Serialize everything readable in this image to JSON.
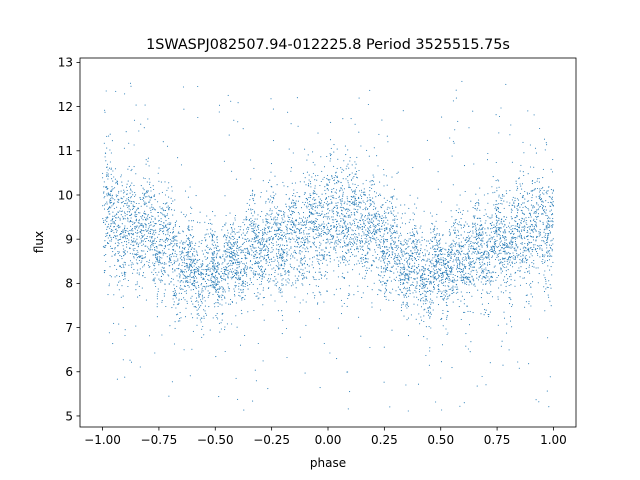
{
  "chart_data": {
    "type": "scatter",
    "title": "1SWASPJ082507.94-012225.8 Period 3525515.75s",
    "xlabel": "phase",
    "ylabel": "flux",
    "xlim": [
      -1.1,
      1.1
    ],
    "ylim": [
      4.75,
      13.1
    ],
    "x_ticks": [
      -1.0,
      -0.75,
      -0.5,
      -0.25,
      0.0,
      0.25,
      0.5,
      0.75,
      1.0
    ],
    "x_tick_labels": [
      "−1.00",
      "−0.75",
      "−0.50",
      "−0.25",
      "0.00",
      "0.25",
      "0.50",
      "0.75",
      "1.00"
    ],
    "y_ticks": [
      5,
      6,
      7,
      8,
      9,
      10,
      11,
      12,
      13
    ],
    "y_tick_labels": [
      "5",
      "6",
      "7",
      "8",
      "9",
      "10",
      "11",
      "12",
      "13"
    ],
    "grid": false,
    "legend": "none",
    "marker_color": "#1f77b4",
    "series": [
      {
        "phase_range": [
          -1.0,
          1.0
        ],
        "profile": {
          "phase": [
            0.0,
            0.05,
            0.1,
            0.15,
            0.2,
            0.25,
            0.3,
            0.35,
            0.4,
            0.45,
            0.5,
            0.55,
            0.6,
            0.65,
            0.7,
            0.75,
            0.8,
            0.85,
            0.9,
            0.95,
            1.0
          ],
          "median_flux": [
            9.4,
            9.5,
            9.3,
            9.3,
            9.2,
            9.0,
            8.7,
            8.5,
            8.3,
            8.2,
            8.3,
            8.4,
            8.5,
            8.7,
            8.8,
            8.9,
            9.0,
            9.1,
            9.2,
            9.3,
            9.4
          ],
          "spread": [
            0.7,
            0.7,
            0.65,
            0.65,
            0.6,
            0.6,
            0.55,
            0.55,
            0.5,
            0.5,
            0.5,
            0.5,
            0.5,
            0.55,
            0.55,
            0.6,
            0.6,
            0.65,
            0.65,
            0.7,
            0.7
          ]
        },
        "outlier_range": [
          5.1,
          12.6
        ]
      }
    ]
  }
}
